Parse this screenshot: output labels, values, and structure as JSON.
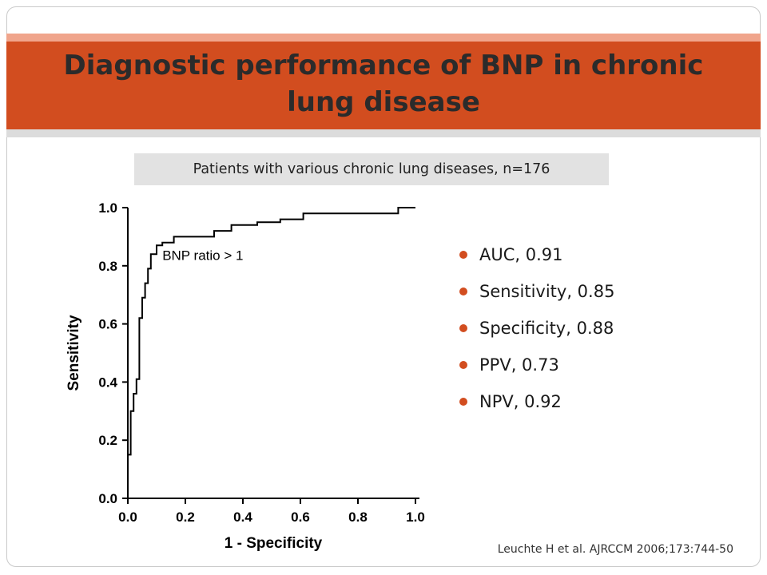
{
  "slide": {
    "title": "Diagnostic performance of BNP in chronic lung disease",
    "subtitle": "Patients with various chronic lung diseases, n=176",
    "citation": "Leuchte H et al. AJRCCM 2006;173:744-50",
    "colors": {
      "accent": "#d24d1f",
      "accent_light": "#f0a58c",
      "subtitle_bg": "#e2e2e2"
    }
  },
  "bullets": [
    {
      "text": "AUC,  0.91"
    },
    {
      "text": "Sensitivity, 0.85"
    },
    {
      "text": "Specificity, 0.88"
    },
    {
      "text": "PPV, 0.73"
    },
    {
      "text": "NPV, 0.92"
    }
  ],
  "chart_data": {
    "type": "line",
    "title": "",
    "xlabel": "1 - Specificity",
    "ylabel": "Sensitivity",
    "xlim": [
      0,
      1
    ],
    "ylim": [
      0,
      1
    ],
    "grid": false,
    "x_ticks": [
      "0.0",
      "0.2",
      "0.4",
      "0.6",
      "0.8",
      "1.0"
    ],
    "y_ticks": [
      "0.0",
      "0.2",
      "0.4",
      "0.6",
      "0.8",
      "1.0"
    ],
    "series": [
      {
        "x": [
          0,
          0,
          0.01,
          0.01,
          0.02,
          0.02,
          0.03,
          0.03,
          0.04,
          0.04,
          0.05,
          0.05,
          0.06,
          0.06,
          0.07,
          0.07,
          0.08,
          0.08,
          0.1,
          0.1,
          0.12,
          0.12,
          0.16,
          0.16,
          0.3,
          0.3,
          0.36,
          0.36,
          0.45,
          0.45,
          0.53,
          0.53,
          0.61,
          0.61,
          0.69,
          0.69,
          0.94,
          0.94,
          1.0
        ],
        "y": [
          0,
          0.15,
          0.15,
          0.3,
          0.3,
          0.36,
          0.36,
          0.41,
          0.41,
          0.62,
          0.62,
          0.69,
          0.69,
          0.74,
          0.74,
          0.79,
          0.79,
          0.84,
          0.84,
          0.87,
          0.87,
          0.88,
          0.88,
          0.9,
          0.9,
          0.92,
          0.92,
          0.94,
          0.94,
          0.95,
          0.95,
          0.96,
          0.96,
          0.98,
          0.98,
          0.98,
          0.98,
          1.0,
          1.0
        ]
      }
    ],
    "annotations": [
      {
        "text": "BNP ratio > 1",
        "x": 0.12,
        "y": 0.82
      }
    ]
  }
}
